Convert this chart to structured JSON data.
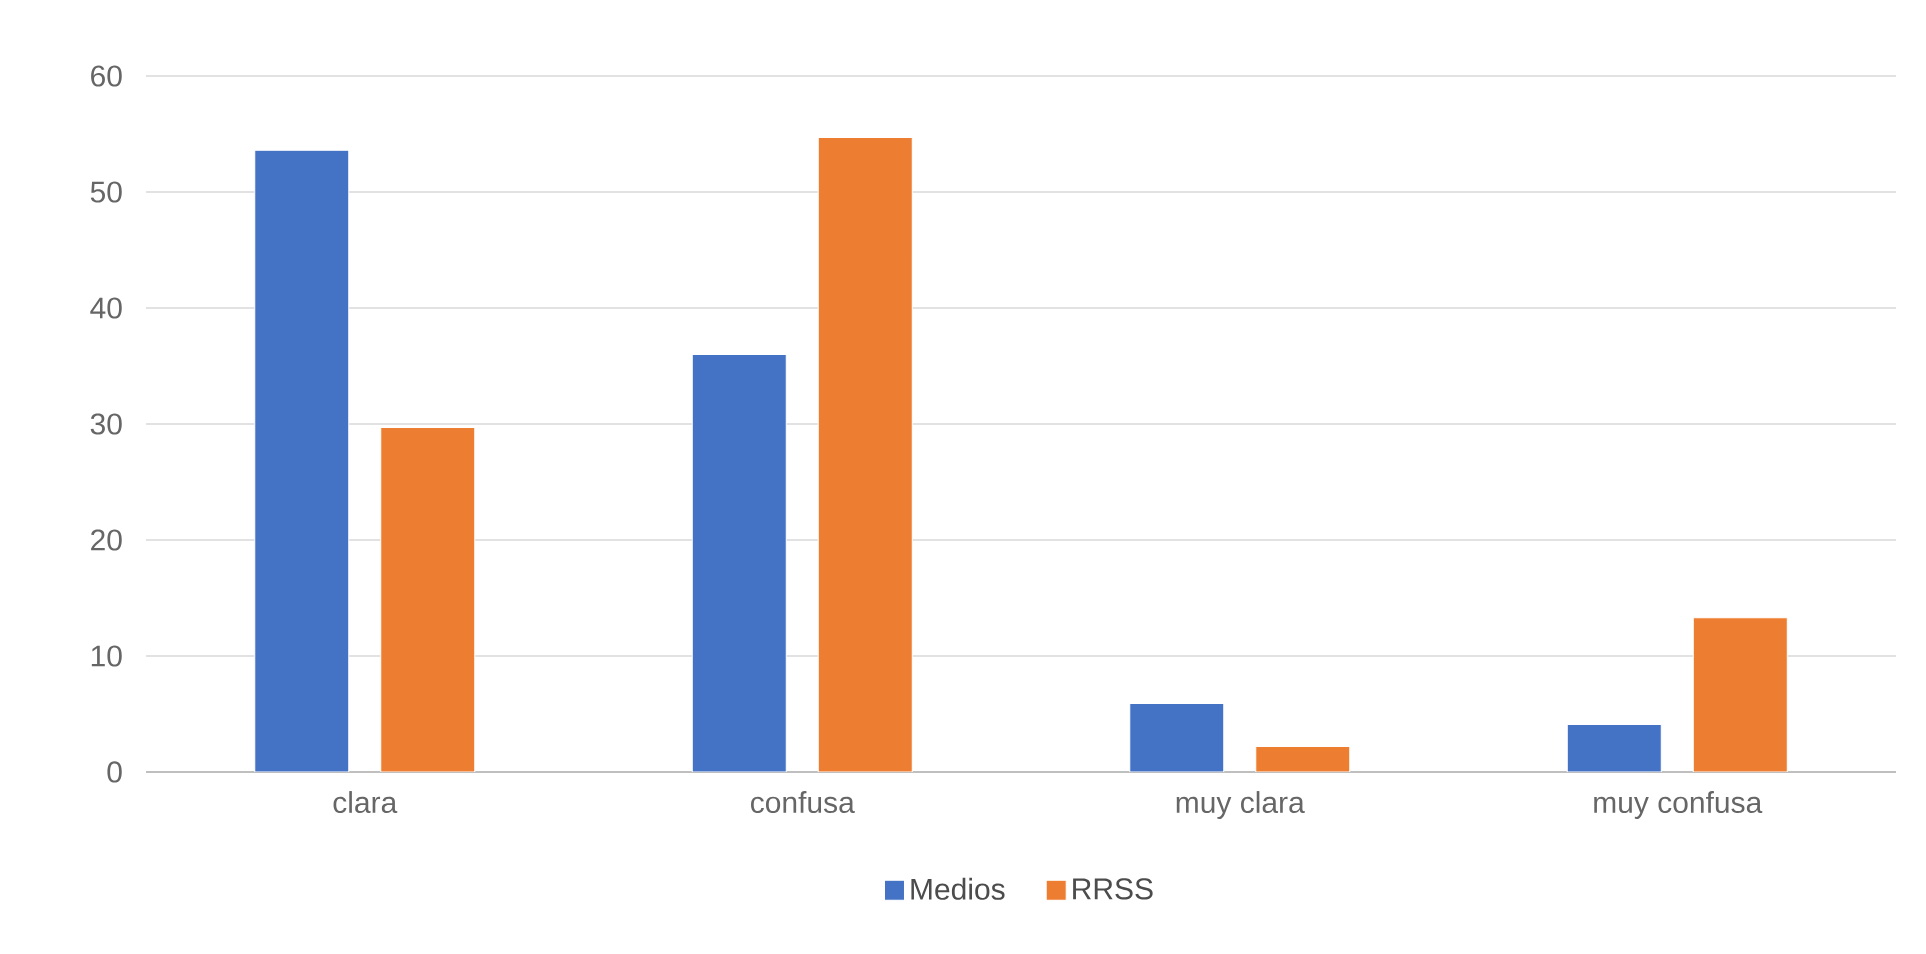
{
  "chart_data": {
    "type": "bar",
    "categories": [
      "clara",
      "confusa",
      "muy clara",
      "muy confusa"
    ],
    "series": [
      {
        "name": "Medios",
        "color": "#4472c4",
        "values": [
          53.6,
          36.0,
          5.9,
          4.1
        ]
      },
      {
        "name": "RRSS",
        "color": "#ed7d31",
        "values": [
          29.7,
          54.7,
          2.2,
          13.3
        ]
      }
    ],
    "ylim": [
      0,
      60
    ],
    "yticks": [
      0,
      10,
      20,
      30,
      40,
      50,
      60
    ],
    "grid": "y",
    "legend": "bottom"
  }
}
